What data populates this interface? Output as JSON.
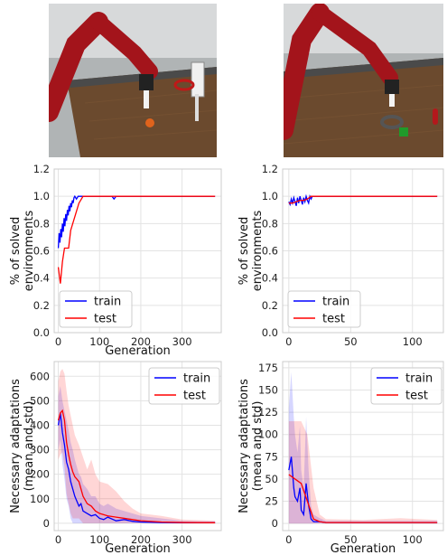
{
  "photos": {
    "left": {
      "colors": {
        "floor": "#b0b4b5",
        "table": "#6b4a2e",
        "robot": "#a3141b",
        "wall": "#d7d9da"
      }
    },
    "right": {
      "colors": {
        "floor": "#b0b4b5",
        "table": "#6b4a2e",
        "robot": "#a3141b",
        "wall": "#d7d9da"
      }
    }
  },
  "colors": {
    "train": "#0000ff",
    "test": "#ff0000",
    "grid": "#e3e3e3",
    "frame": "#cccccc"
  },
  "chart_data": [
    {
      "type": "line",
      "id": "solved-left",
      "xlabel": "Generation",
      "ylabel": [
        "% of solved",
        "environments"
      ],
      "xlim": [
        -10,
        395
      ],
      "ylim": [
        0,
        1.2
      ],
      "xticks": [
        0,
        100,
        200,
        300
      ],
      "yticks": [
        0.0,
        0.2,
        0.4,
        0.6,
        0.8,
        1.0,
        1.2
      ],
      "ytick_labels": [
        "0.0",
        "0.2",
        "0.4",
        "0.6",
        "0.8",
        "1.0",
        "1.2"
      ],
      "grid": true,
      "legend": "lower-left",
      "series": [
        {
          "name": "train",
          "x": [
            0,
            2,
            4,
            6,
            8,
            10,
            12,
            14,
            16,
            18,
            20,
            22,
            24,
            26,
            28,
            30,
            32,
            34,
            36,
            38,
            40,
            44,
            48,
            52,
            56,
            60,
            70,
            80,
            100,
            120,
            130,
            135,
            140,
            150,
            200,
            250,
            300,
            380
          ],
          "y": [
            0.62,
            0.73,
            0.66,
            0.76,
            0.7,
            0.8,
            0.74,
            0.84,
            0.78,
            0.87,
            0.82,
            0.9,
            0.86,
            0.93,
            0.89,
            0.95,
            0.92,
            0.97,
            0.95,
            0.99,
            1.0,
            0.98,
            1.0,
            1.0,
            1.0,
            1.0,
            1.0,
            1.0,
            1.0,
            1.0,
            1.0,
            0.98,
            1.0,
            1.0,
            1.0,
            1.0,
            1.0,
            1.0
          ]
        },
        {
          "name": "test",
          "x": [
            0,
            5,
            10,
            15,
            20,
            25,
            30,
            40,
            50,
            60,
            70,
            80,
            100,
            150,
            200,
            250,
            300,
            380
          ],
          "y": [
            0.48,
            0.36,
            0.52,
            0.62,
            0.62,
            0.62,
            0.75,
            0.85,
            0.95,
            1.0,
            1.0,
            1.0,
            1.0,
            1.0,
            1.0,
            1.0,
            1.0,
            1.0
          ]
        }
      ]
    },
    {
      "type": "line",
      "id": "solved-right",
      "xlabel": "",
      "ylabel": [
        "% of solved",
        "environments"
      ],
      "xlim": [
        -5,
        125
      ],
      "ylim": [
        0,
        1.2
      ],
      "xticks": [
        0,
        50,
        100
      ],
      "yticks": [
        0.0,
        0.2,
        0.4,
        0.6,
        0.8,
        1.0,
        1.2
      ],
      "ytick_labels": [
        "0.0",
        "0.2",
        "0.4",
        "0.6",
        "0.8",
        "1.0",
        "1.2"
      ],
      "grid": true,
      "legend": "lower-left",
      "series": [
        {
          "name": "train",
          "x": [
            0,
            1,
            2,
            3,
            4,
            5,
            6,
            7,
            8,
            9,
            10,
            11,
            12,
            13,
            14,
            15,
            16,
            17,
            18,
            19,
            20,
            30,
            60,
            90,
            120
          ],
          "y": [
            0.96,
            0.94,
            0.98,
            0.95,
            0.99,
            0.96,
            0.93,
            0.99,
            0.95,
            1.0,
            0.97,
            0.94,
            0.99,
            0.96,
            1.0,
            0.97,
            0.95,
            1.0,
            0.98,
            1.0,
            1.0,
            1.0,
            1.0,
            1.0,
            1.0
          ]
        },
        {
          "name": "test",
          "x": [
            0,
            3,
            6,
            9,
            12,
            15,
            18,
            20,
            30,
            60,
            90,
            120
          ],
          "y": [
            0.95,
            0.95,
            0.96,
            0.97,
            0.97,
            0.98,
            1.0,
            1.0,
            1.0,
            1.0,
            1.0,
            1.0
          ]
        }
      ]
    },
    {
      "type": "line",
      "id": "adapt-left",
      "xlabel": "Generation",
      "ylabel": [
        "Necessary adaptations",
        "(mean and std)"
      ],
      "xlim": [
        -10,
        395
      ],
      "ylim": [
        -30,
        660
      ],
      "xticks": [
        0,
        100,
        200,
        300
      ],
      "yticks": [
        0,
        100,
        200,
        300,
        400,
        500,
        600
      ],
      "ytick_labels": [
        "0",
        "100",
        "200",
        "300",
        "400",
        "500",
        "600"
      ],
      "grid": true,
      "legend": "upper-right",
      "series": [
        {
          "name": "train",
          "x": [
            0,
            5,
            10,
            15,
            20,
            25,
            30,
            35,
            40,
            45,
            50,
            55,
            60,
            70,
            80,
            90,
            100,
            110,
            120,
            140,
            160,
            180,
            200,
            250,
            300,
            380
          ],
          "y": [
            400,
            450,
            370,
            320,
            250,
            220,
            170,
            140,
            110,
            90,
            70,
            80,
            50,
            40,
            30,
            35,
            20,
            15,
            25,
            10,
            15,
            8,
            5,
            3,
            2,
            2
          ],
          "band_upper": [
            520,
            560,
            500,
            460,
            420,
            380,
            330,
            300,
            260,
            230,
            200,
            190,
            160,
            140,
            110,
            110,
            80,
            70,
            80,
            60,
            50,
            40,
            30,
            20,
            10,
            8
          ],
          "band_lower": [
            300,
            340,
            240,
            180,
            100,
            70,
            20,
            0,
            0,
            0,
            0,
            0,
            0,
            0,
            0,
            0,
            0,
            0,
            0,
            0,
            0,
            0,
            0,
            0,
            0,
            0
          ]
        },
        {
          "name": "test",
          "x": [
            0,
            5,
            10,
            15,
            20,
            25,
            30,
            35,
            40,
            45,
            50,
            60,
            70,
            80,
            90,
            100,
            120,
            140,
            160,
            180,
            200,
            250,
            300,
            380
          ],
          "y": [
            420,
            450,
            460,
            420,
            330,
            280,
            240,
            210,
            190,
            180,
            170,
            110,
            80,
            70,
            50,
            40,
            30,
            25,
            20,
            15,
            10,
            5,
            3,
            2
          ],
          "band_upper": [
            580,
            620,
            630,
            610,
            540,
            480,
            440,
            400,
            360,
            340,
            320,
            270,
            220,
            260,
            200,
            170,
            160,
            130,
            90,
            60,
            40,
            30,
            15,
            10
          ],
          "band_lower": [
            260,
            280,
            290,
            230,
            120,
            80,
            40,
            20,
            20,
            20,
            20,
            0,
            0,
            0,
            0,
            0,
            0,
            0,
            0,
            0,
            0,
            0,
            0,
            0
          ]
        }
      ]
    },
    {
      "type": "line",
      "id": "adapt-right",
      "xlabel": "Generation",
      "ylabel": [
        "Necessary adaptations",
        "(mean and std)"
      ],
      "xlim": [
        -5,
        125
      ],
      "ylim": [
        -8,
        182
      ],
      "xticks": [
        0,
        50,
        100
      ],
      "yticks": [
        0,
        25,
        50,
        75,
        100,
        125,
        150,
        175
      ],
      "ytick_labels": [
        "0",
        "25",
        "50",
        "75",
        "100",
        "125",
        "150",
        "175"
      ],
      "grid": true,
      "legend": "upper-right",
      "series": [
        {
          "name": "train",
          "x": [
            0,
            2,
            4,
            5,
            7,
            9,
            10,
            12,
            14,
            16,
            18,
            20,
            25,
            30,
            60,
            90,
            120
          ],
          "y": [
            60,
            75,
            40,
            30,
            25,
            40,
            15,
            10,
            45,
            20,
            5,
            2,
            2,
            1,
            1,
            1,
            1
          ],
          "band_upper": [
            130,
            170,
            120,
            100,
            80,
            110,
            60,
            40,
            120,
            60,
            20,
            10,
            6,
            3,
            3,
            3,
            3
          ],
          "band_lower": [
            0,
            0,
            0,
            0,
            0,
            0,
            0,
            0,
            0,
            0,
            0,
            0,
            0,
            0,
            0,
            0,
            0
          ]
        },
        {
          "name": "test",
          "x": [
            0,
            5,
            10,
            15,
            20,
            25,
            30,
            60,
            90,
            120
          ],
          "y": [
            55,
            50,
            45,
            25,
            5,
            2,
            1,
            1,
            1,
            1
          ],
          "band_upper": [
            115,
            115,
            115,
            100,
            40,
            10,
            5,
            4,
            6,
            4
          ],
          "band_lower": [
            0,
            0,
            0,
            0,
            0,
            0,
            0,
            0,
            0,
            0
          ]
        }
      ]
    }
  ]
}
